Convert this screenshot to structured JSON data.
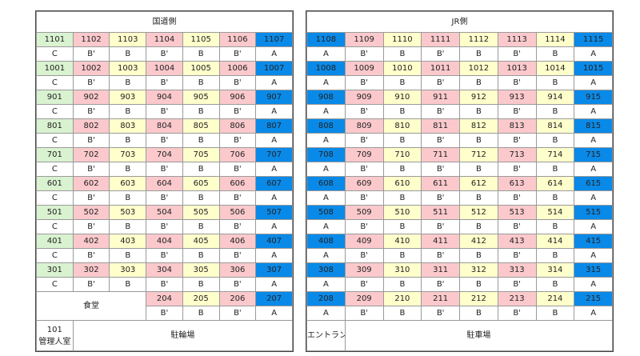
{
  "left": {
    "title": "国道側",
    "column_colors": [
      "#d9f2d0",
      "#fbc9cc",
      "#ffffcc",
      "#fbc9cc",
      "#ffffcc",
      "#fbc9cc",
      "#0a8ae8"
    ],
    "floors": [
      {
        "rooms": [
          "1101",
          "1102",
          "1103",
          "1104",
          "1105",
          "1106",
          "1107"
        ],
        "types": [
          "C",
          "B'",
          "B",
          "B'",
          "B",
          "B'",
          "A"
        ]
      },
      {
        "rooms": [
          "1001",
          "1002",
          "1003",
          "1004",
          "1005",
          "1006",
          "1007"
        ],
        "types": [
          "C",
          "B'",
          "B",
          "B'",
          "B",
          "B'",
          "A"
        ]
      },
      {
        "rooms": [
          "901",
          "902",
          "903",
          "904",
          "905",
          "906",
          "907"
        ],
        "types": [
          "C",
          "B'",
          "B",
          "B'",
          "B",
          "B'",
          "A"
        ]
      },
      {
        "rooms": [
          "801",
          "802",
          "803",
          "804",
          "805",
          "806",
          "807"
        ],
        "types": [
          "C",
          "B'",
          "B",
          "B'",
          "B",
          "B'",
          "A"
        ]
      },
      {
        "rooms": [
          "701",
          "702",
          "703",
          "704",
          "705",
          "706",
          "707"
        ],
        "types": [
          "C",
          "B'",
          "B",
          "B'",
          "B",
          "B'",
          "A"
        ]
      },
      {
        "rooms": [
          "601",
          "602",
          "603",
          "604",
          "605",
          "606",
          "607"
        ],
        "types": [
          "C",
          "B'",
          "B",
          "B'",
          "B",
          "B'",
          "A"
        ]
      },
      {
        "rooms": [
          "501",
          "502",
          "503",
          "504",
          "505",
          "506",
          "507"
        ],
        "types": [
          "C",
          "B'",
          "B",
          "B'",
          "B",
          "B'",
          "A"
        ]
      },
      {
        "rooms": [
          "401",
          "402",
          "403",
          "404",
          "405",
          "406",
          "407"
        ],
        "types": [
          "C",
          "B'",
          "B",
          "B'",
          "B",
          "B'",
          "A"
        ]
      },
      {
        "rooms": [
          "301",
          "302",
          "303",
          "304",
          "305",
          "306",
          "307"
        ],
        "types": [
          "C",
          "B'",
          "B",
          "B'",
          "B",
          "B'",
          "A"
        ]
      }
    ],
    "floor2": {
      "label": "食堂",
      "rooms": [
        "204",
        "205",
        "206",
        "207"
      ],
      "types": [
        "B'",
        "B",
        "B'",
        "A"
      ]
    },
    "bottom": {
      "room": "101",
      "room_label": "管理人室",
      "area": "駐輪場"
    }
  },
  "right": {
    "title": "JR側",
    "column_colors": [
      "#0a8ae8",
      "#fbc9cc",
      "#ffffcc",
      "#fbc9cc",
      "#ffffcc",
      "#fbc9cc",
      "#ffffcc",
      "#0a8ae8"
    ],
    "floors": [
      {
        "rooms": [
          "1108",
          "1109",
          "1110",
          "1111",
          "1112",
          "1113",
          "1114",
          "1115"
        ],
        "types": [
          "A",
          "B'",
          "B",
          "B'",
          "B",
          "B'",
          "B",
          "A"
        ]
      },
      {
        "rooms": [
          "1008",
          "1009",
          "1010",
          "1011",
          "1012",
          "1013",
          "1014",
          "1015"
        ],
        "types": [
          "A",
          "B'",
          "B",
          "B'",
          "B",
          "B'",
          "B",
          "A"
        ]
      },
      {
        "rooms": [
          "908",
          "909",
          "910",
          "911",
          "912",
          "913",
          "914",
          "915"
        ],
        "types": [
          "A",
          "B'",
          "B",
          "B'",
          "B",
          "B'",
          "B",
          "A"
        ]
      },
      {
        "rooms": [
          "808",
          "809",
          "810",
          "811",
          "812",
          "813",
          "814",
          "815"
        ],
        "types": [
          "A",
          "B'",
          "B",
          "B'",
          "B",
          "B'",
          "B",
          "A"
        ]
      },
      {
        "rooms": [
          "708",
          "709",
          "710",
          "711",
          "712",
          "713",
          "714",
          "715"
        ],
        "types": [
          "A",
          "B'",
          "B",
          "B'",
          "B",
          "B'",
          "B",
          "A"
        ]
      },
      {
        "rooms": [
          "608",
          "609",
          "610",
          "611",
          "612",
          "613",
          "614",
          "615"
        ],
        "types": [
          "A",
          "B'",
          "B",
          "B'",
          "B",
          "B'",
          "B",
          "A"
        ]
      },
      {
        "rooms": [
          "508",
          "509",
          "510",
          "511",
          "512",
          "513",
          "514",
          "515"
        ],
        "types": [
          "A",
          "B'",
          "B",
          "B'",
          "B",
          "B'",
          "B",
          "A"
        ]
      },
      {
        "rooms": [
          "408",
          "409",
          "410",
          "411",
          "412",
          "413",
          "414",
          "415"
        ],
        "types": [
          "A",
          "B'",
          "B",
          "B'",
          "B",
          "B'",
          "B",
          "A"
        ]
      },
      {
        "rooms": [
          "308",
          "309",
          "310",
          "311",
          "312",
          "313",
          "314",
          "315"
        ],
        "types": [
          "A",
          "B'",
          "B",
          "B'",
          "B",
          "B'",
          "B",
          "A"
        ]
      },
      {
        "rooms": [
          "208",
          "209",
          "210",
          "211",
          "212",
          "213",
          "214",
          "215"
        ],
        "types": [
          "A",
          "B'",
          "B",
          "B'",
          "B",
          "B'",
          "B",
          "A"
        ]
      }
    ],
    "bottom": {
      "entrance": "エントランス",
      "area": "駐車場"
    }
  }
}
